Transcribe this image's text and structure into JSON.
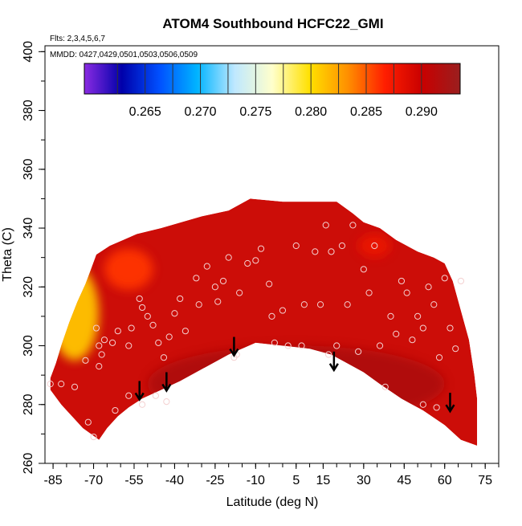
{
  "chart_data": {
    "type": "heatmap",
    "title": "ATOM4 Southbound HCFC22_GMI",
    "flights_label": "Flts: 2,3,4,5,6,7",
    "dates_label": "MMDD: 0427,0429,0501,0503,0506,0509",
    "xlabel": "Latitude (deg N)",
    "ylabel": "Theta (C)",
    "xlim": [
      -88,
      80
    ],
    "ylim": [
      260,
      402
    ],
    "x_ticks": [
      "-85",
      "-70",
      "-55",
      "-40",
      "-25",
      "-10",
      "5",
      "15",
      "30",
      "45",
      "60",
      "75"
    ],
    "x_tick_values": [
      -85,
      -70,
      -55,
      -40,
      -25,
      -10,
      5,
      15,
      30,
      45,
      60,
      75
    ],
    "y_ticks": [
      "260",
      "280",
      "300",
      "320",
      "340",
      "360",
      "380",
      "400"
    ],
    "y_tick_values": [
      260,
      280,
      300,
      320,
      340,
      360,
      380,
      400
    ],
    "colorbar": {
      "range": [
        0.2595,
        0.2935
      ],
      "ticks": [
        "0.265",
        "0.270",
        "0.275",
        "0.280",
        "0.285",
        "0.290"
      ],
      "tick_values": [
        0.265,
        0.27,
        0.275,
        0.28,
        0.285,
        0.29
      ],
      "colors": [
        "#8a2be2",
        "#0000aa",
        "#0050ff",
        "#00b4ff",
        "#bfe8ff",
        "#ffffcc",
        "#ffe000",
        "#ff9000",
        "#ff1e00",
        "#c80000",
        "#9a1f1f"
      ]
    },
    "field_color": "#cc0d08",
    "boundary_upper": [
      [
        -86,
        289
      ],
      [
        -84,
        294
      ],
      [
        -82,
        300
      ],
      [
        -79,
        308
      ],
      [
        -76,
        315
      ],
      [
        -73,
        321
      ],
      [
        -71,
        326
      ],
      [
        -69,
        331
      ],
      [
        -64,
        334
      ],
      [
        -59,
        336
      ],
      [
        -54,
        338
      ],
      [
        -45,
        340
      ],
      [
        -30,
        344
      ],
      [
        -20,
        346
      ],
      [
        -12,
        350
      ],
      [
        0,
        349
      ],
      [
        20,
        349
      ],
      [
        26,
        345
      ],
      [
        30,
        342
      ],
      [
        36,
        340
      ],
      [
        42,
        336
      ],
      [
        50,
        332
      ],
      [
        56,
        330
      ],
      [
        60,
        328
      ],
      [
        63,
        322
      ],
      [
        66,
        312
      ],
      [
        69,
        302
      ],
      [
        71,
        290
      ],
      [
        72,
        282
      ],
      [
        72,
        266
      ]
    ],
    "boundary_lower": [
      [
        72,
        266
      ],
      [
        66,
        268
      ],
      [
        60,
        273
      ],
      [
        52,
        278
      ],
      [
        44,
        282
      ],
      [
        36,
        287
      ],
      [
        30,
        291
      ],
      [
        24,
        294
      ],
      [
        18,
        297
      ],
      [
        10,
        299
      ],
      [
        0,
        300
      ],
      [
        -10,
        301
      ],
      [
        -20,
        297
      ],
      [
        -30,
        292
      ],
      [
        -38,
        288
      ],
      [
        -45,
        285
      ],
      [
        -52,
        282
      ],
      [
        -57,
        279
      ],
      [
        -61,
        276
      ],
      [
        -65,
        272
      ],
      [
        -68,
        268
      ],
      [
        -71,
        270
      ],
      [
        -74,
        272
      ],
      [
        -78,
        276
      ],
      [
        -82,
        280
      ],
      [
        -86,
        285
      ]
    ],
    "anomalies": [
      {
        "name": "southern-high-latitude-yellow",
        "x": -77,
        "y": 311,
        "rx": 9,
        "ry": 16,
        "level": 0.281
      },
      {
        "name": "south-subtropical-orange",
        "x": -57,
        "y": 326,
        "rx": 9,
        "ry": 7,
        "level": 0.286
      },
      {
        "name": "northern-subtropical-orange",
        "x": 34,
        "y": 334,
        "rx": 6,
        "ry": 4,
        "level": 0.288
      },
      {
        "name": "lower-troposphere-dark",
        "x": 5,
        "y": 287,
        "rx": 55,
        "ry": 13,
        "level": 0.292
      }
    ],
    "samples": [
      [
        -86,
        287
      ],
      [
        -77,
        286
      ],
      [
        -72,
        274
      ],
      [
        -70,
        269
      ],
      [
        -73,
        295
      ],
      [
        -68,
        300
      ],
      [
        -67,
        297
      ],
      [
        -68,
        293
      ],
      [
        -69,
        306
      ],
      [
        -66,
        302
      ],
      [
        -63,
        301
      ],
      [
        -61,
        305
      ],
      [
        -57,
        300
      ],
      [
        -56,
        306
      ],
      [
        -53,
        316
      ],
      [
        -52,
        313
      ],
      [
        -50,
        310
      ],
      [
        -48,
        307
      ],
      [
        -46,
        301
      ],
      [
        -44,
        296
      ],
      [
        -42,
        303
      ],
      [
        -40,
        311
      ],
      [
        -38,
        316
      ],
      [
        -36,
        305
      ],
      [
        -32,
        323
      ],
      [
        -31,
        314
      ],
      [
        -28,
        327
      ],
      [
        -25,
        320
      ],
      [
        -24,
        315
      ],
      [
        -22,
        322
      ],
      [
        -20,
        330
      ],
      [
        -18,
        296
      ],
      [
        -16,
        318
      ],
      [
        -13,
        328
      ],
      [
        -10,
        329
      ],
      [
        -8,
        333
      ],
      [
        -5,
        321
      ],
      [
        -4,
        310
      ],
      [
        0,
        312
      ],
      [
        2,
        300
      ],
      [
        5,
        334
      ],
      [
        8,
        314
      ],
      [
        12,
        332
      ],
      [
        14,
        314
      ],
      [
        16,
        341
      ],
      [
        18,
        332
      ],
      [
        20,
        300
      ],
      [
        22,
        334
      ],
      [
        24,
        314
      ],
      [
        26,
        341
      ],
      [
        28,
        298
      ],
      [
        30,
        326
      ],
      [
        32,
        318
      ],
      [
        34,
        334
      ],
      [
        36,
        300
      ],
      [
        38,
        286
      ],
      [
        40,
        310
      ],
      [
        42,
        304
      ],
      [
        44,
        322
      ],
      [
        46,
        318
      ],
      [
        48,
        302
      ],
      [
        50,
        310
      ],
      [
        52,
        306
      ],
      [
        54,
        320
      ],
      [
        56,
        314
      ],
      [
        58,
        296
      ],
      [
        60,
        323
      ],
      [
        62,
        306
      ],
      [
        64,
        299
      ],
      [
        66,
        322
      ],
      [
        -47,
        283
      ],
      [
        -43,
        281
      ],
      [
        -62,
        278
      ],
      [
        -57,
        283
      ],
      [
        -52,
        280
      ],
      [
        -17,
        297
      ],
      [
        -3,
        301
      ],
      [
        7,
        300
      ],
      [
        17,
        297
      ],
      [
        52,
        280
      ],
      [
        57,
        279
      ],
      [
        -82,
        287
      ]
    ],
    "arrows": [
      [
        -53,
        288
      ],
      [
        -43,
        291
      ],
      [
        -18,
        303
      ],
      [
        19,
        298
      ],
      [
        62,
        284
      ]
    ]
  }
}
